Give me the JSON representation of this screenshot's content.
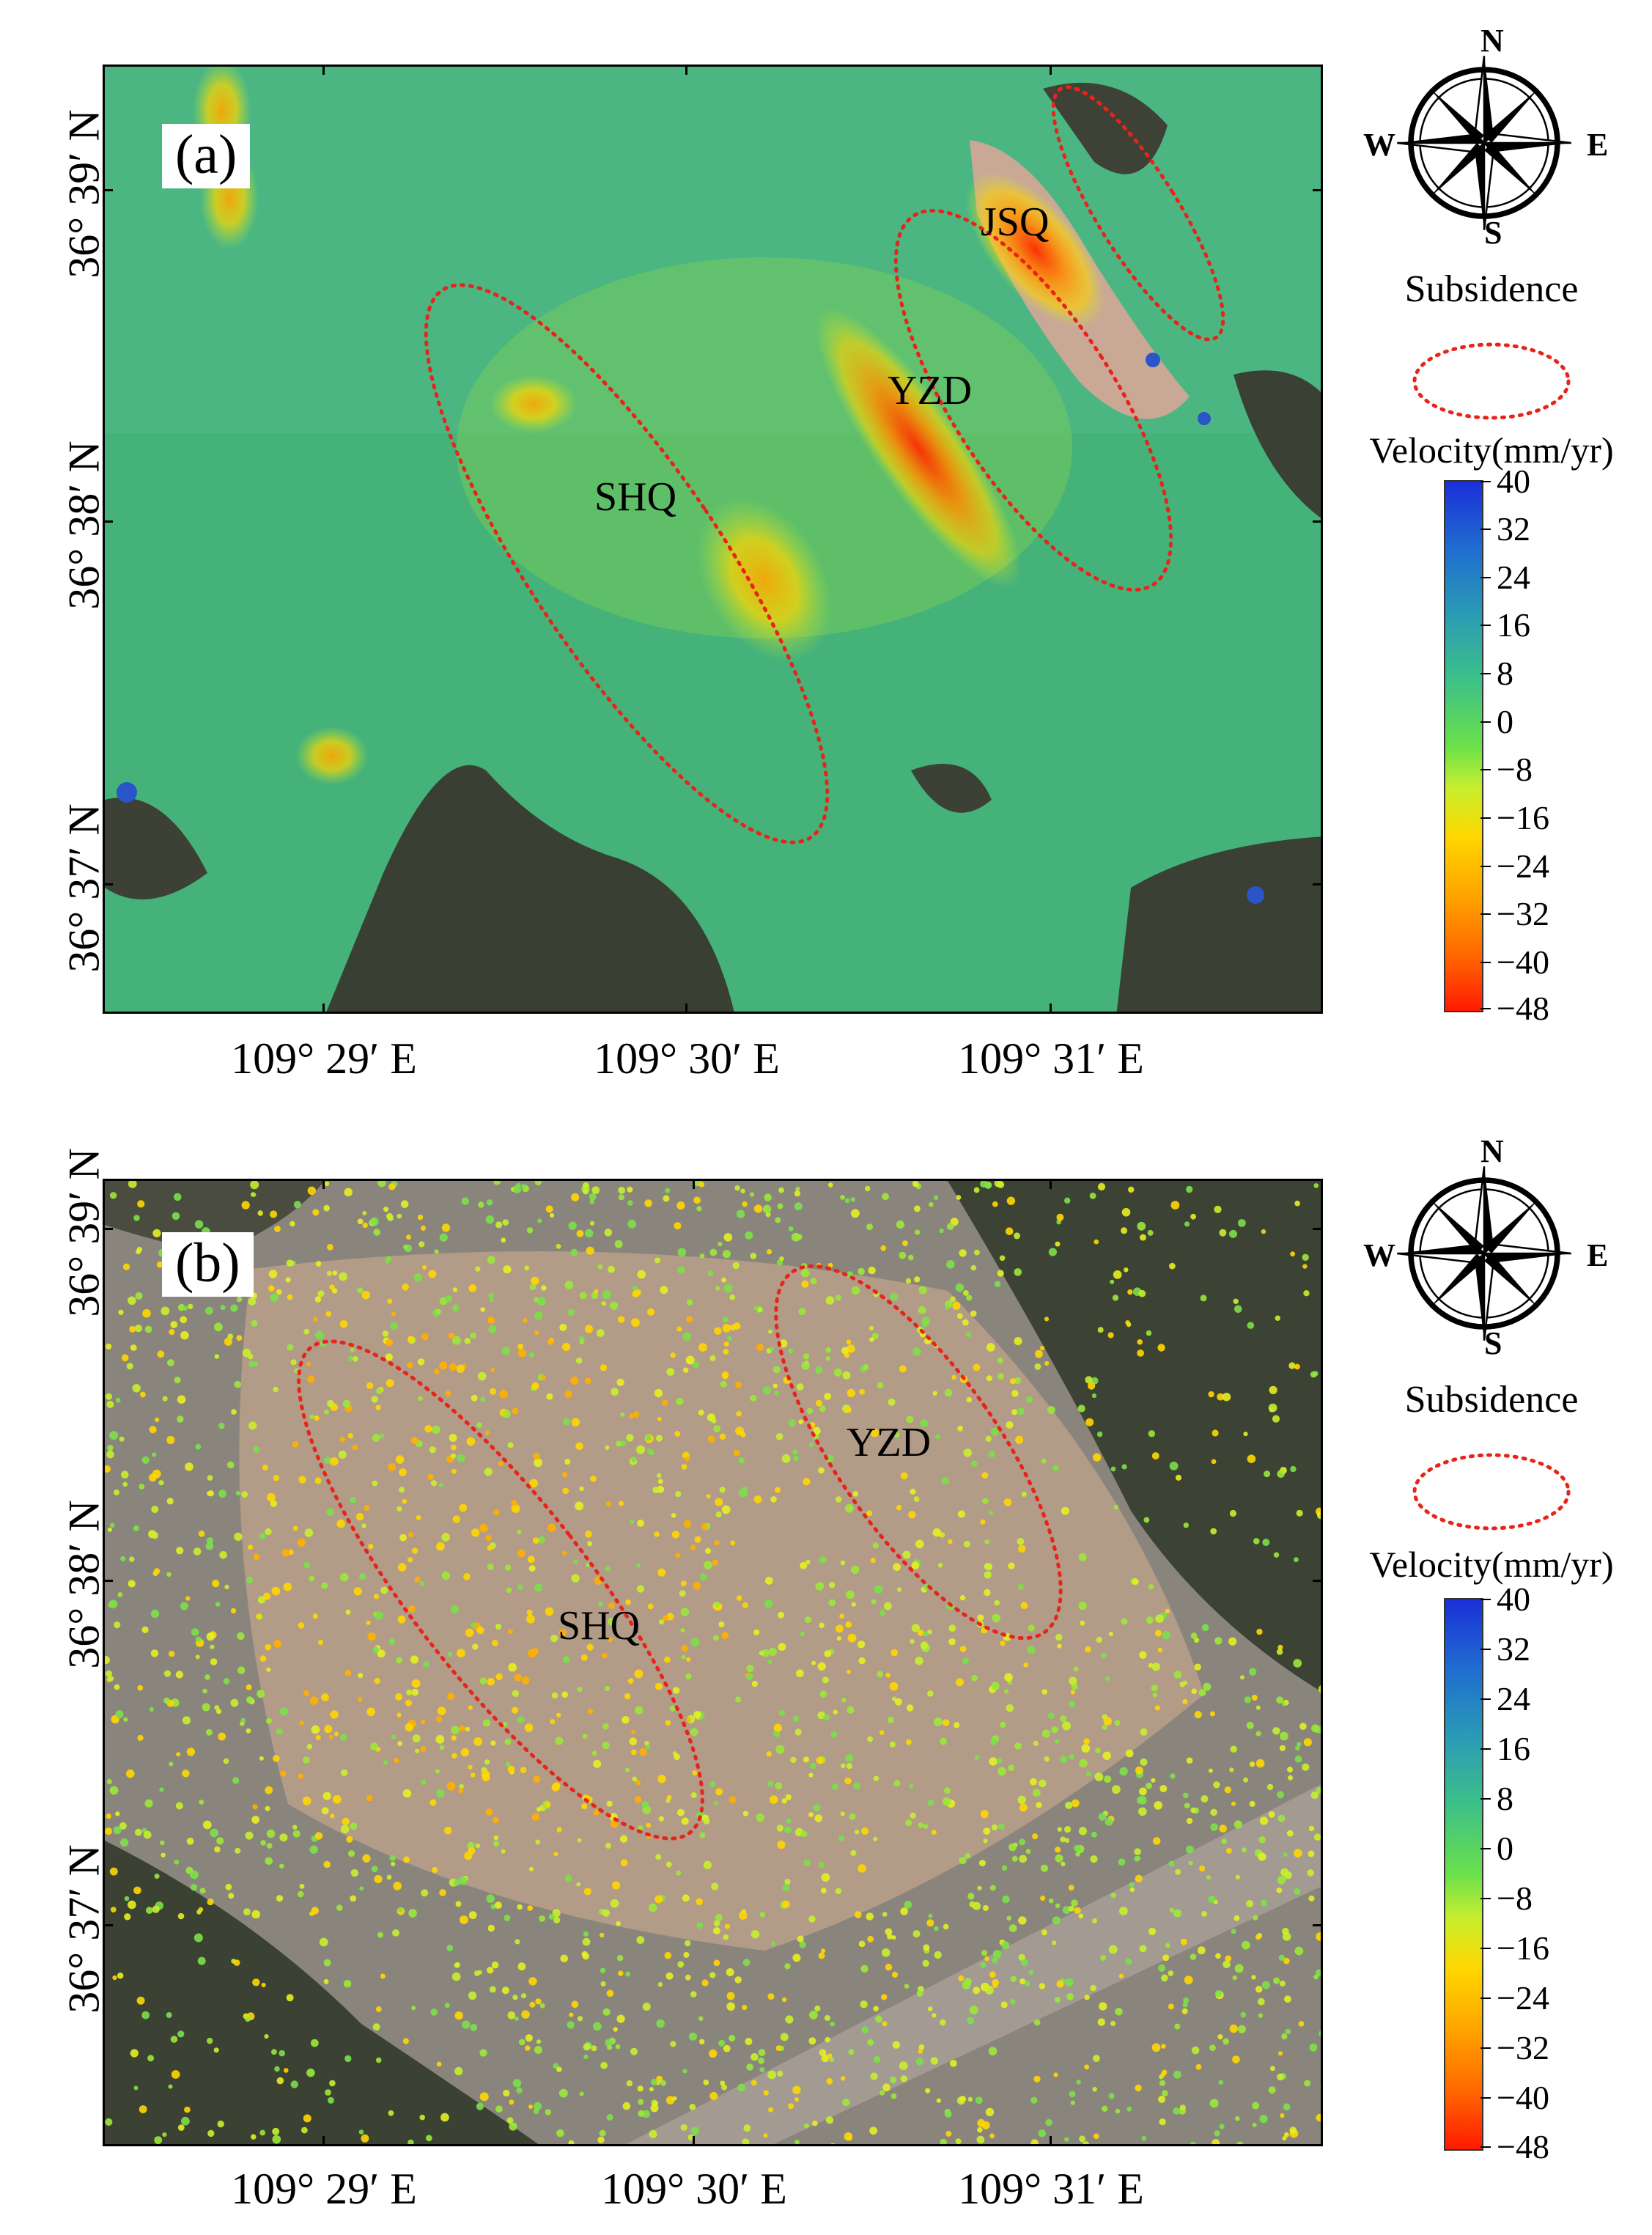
{
  "panels": [
    {
      "label": "(a)",
      "zones": [
        "JSQ",
        "YZD",
        "SHQ"
      ],
      "lat_labels": [
        "36° 39′ N",
        "36° 38′ N",
        "36° 37′ N"
      ],
      "lon_labels": [
        "109° 29′ E",
        "109° 30′ E",
        "109° 31′ E"
      ]
    },
    {
      "label": "(b)",
      "zones": [
        "YZD",
        "SHQ"
      ],
      "lat_labels": [
        "36° 39′ N",
        "36° 38′ N",
        "36° 37′ N"
      ],
      "lon_labels": [
        "109° 29′ E",
        "109° 30′ E",
        "109° 31′ E"
      ]
    }
  ],
  "legend": {
    "compass": {
      "n": "N",
      "s": "S",
      "e": "E",
      "w": "W"
    },
    "subsidence_label": "Subsidence",
    "velocity_label": "Velocity(mm/yr)",
    "colorbar_ticks": [
      "40",
      "32",
      "24",
      "16",
      "8",
      "0",
      "−8",
      "−16",
      "−24",
      "−32",
      "−40",
      "−48"
    ],
    "colorbar_range": [
      -48,
      40
    ],
    "colors": {
      "subsidence_ellipse": "#e8231a"
    }
  }
}
